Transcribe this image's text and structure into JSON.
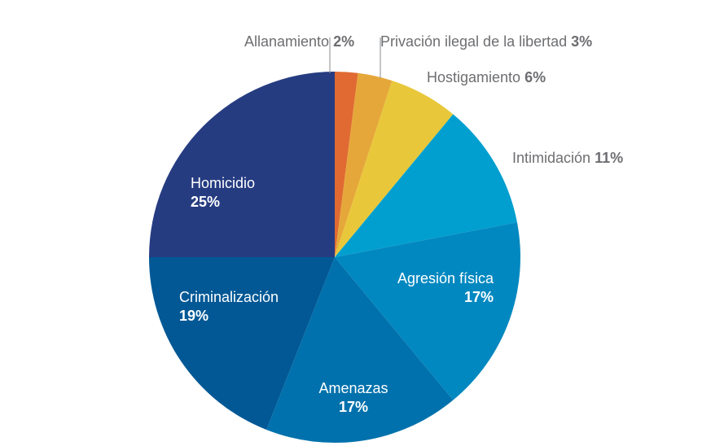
{
  "chart_data": {
    "type": "pie",
    "title": "",
    "start_angle_deg": 0,
    "direction": "clockwise",
    "slices": [
      {
        "label": "Allanamiento",
        "value": 2,
        "value_label": "2%",
        "color": "#e06a32"
      },
      {
        "label": "Privación ilegal de la libertad",
        "value": 3,
        "value_label": "3%",
        "color": "#e6a73a"
      },
      {
        "label": "Hostigamiento",
        "value": 6,
        "value_label": "6%",
        "color": "#e8c83a"
      },
      {
        "label": "Intimidación",
        "value": 11,
        "value_label": "11%",
        "color": "#009fcf"
      },
      {
        "label": "Agresión física",
        "value": 17,
        "value_label": "17%",
        "color": "#0288c0"
      },
      {
        "label": "Amenazas",
        "value": 17,
        "value_label": "17%",
        "color": "#0071ac"
      },
      {
        "label": "Criminalización",
        "value": 19,
        "value_label": "19%",
        "color": "#015895"
      },
      {
        "label": "Homicidio",
        "value": 25,
        "value_label": "25%",
        "color": "#263c81"
      }
    ],
    "categories": [
      "Allanamiento",
      "Privación ilegal de la libertad",
      "Hostigamiento",
      "Intimidación",
      "Agresión física",
      "Amenazas",
      "Criminalización",
      "Homicidio"
    ],
    "values": [
      2,
      3,
      6,
      11,
      17,
      17,
      19,
      25
    ],
    "units": "%"
  },
  "labels": {
    "allanamiento": {
      "name": "Allanamiento",
      "pct": "2%"
    },
    "privacion": {
      "name": "Privación ilegal de la libertad",
      "pct": "3%"
    },
    "hostigamiento": {
      "name": "Hostigamiento",
      "pct": "6%"
    },
    "intimidacion": {
      "name": "Intimidación",
      "pct": "11%"
    },
    "agresion": {
      "name": "Agresión física",
      "pct": "17%"
    },
    "amenazas": {
      "name": "Amenazas",
      "pct": "17%"
    },
    "criminalizacion": {
      "name": "Criminalización",
      "pct": "19%"
    },
    "homicidio": {
      "name": "Homicidio",
      "pct": "25%"
    }
  }
}
